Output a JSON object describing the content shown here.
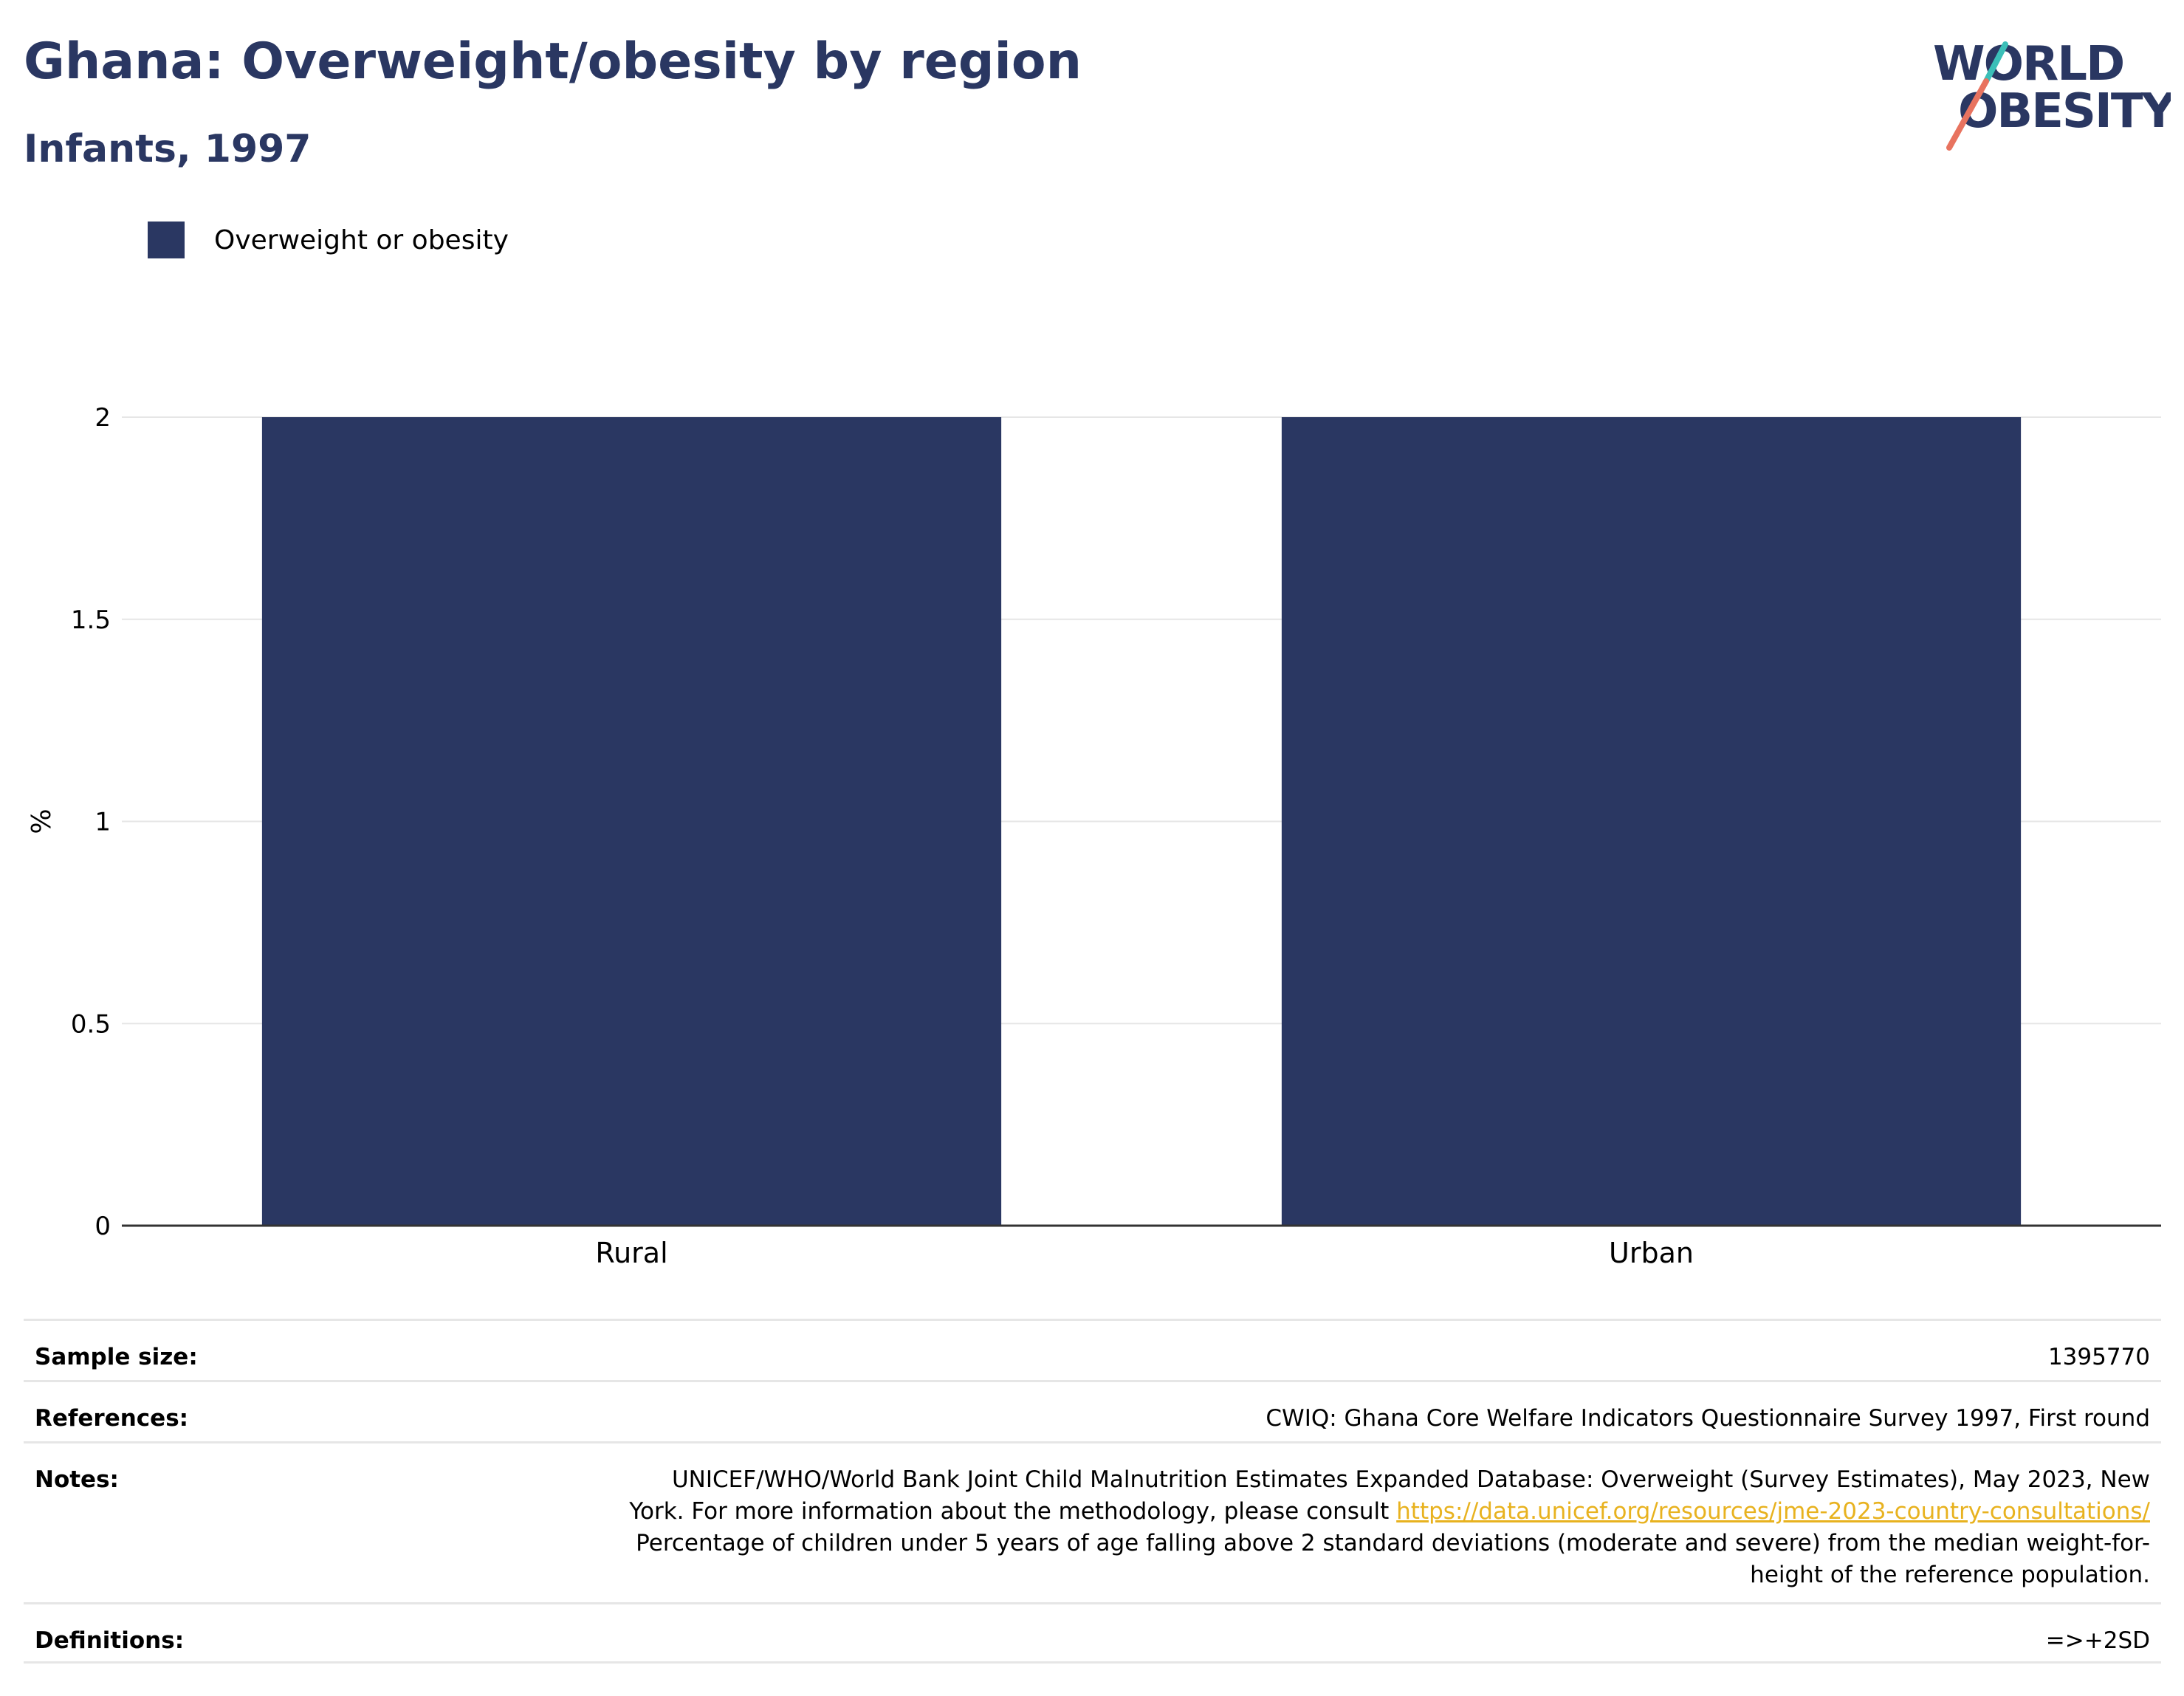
{
  "header": {
    "title": "Ghana: Overweight/obesity by region",
    "subtitle": "Infants, 1997"
  },
  "logo": {
    "line1": "WORLD",
    "line2": "OBESITY",
    "colors": {
      "text": "#2a3762",
      "slash_top": "#3bbfb8",
      "slash_bottom": "#e8735f"
    }
  },
  "legend": {
    "entries": [
      {
        "label": "Overweight or obesity",
        "color": "#2a3762"
      }
    ]
  },
  "chart_data": {
    "type": "bar",
    "categories": [
      "Rural",
      "Urban"
    ],
    "series": [
      {
        "name": "Overweight or obesity",
        "values": [
          2,
          2
        ],
        "color": "#2a3762"
      }
    ],
    "ylabel": "%",
    "xlabel": "",
    "ylim": [
      0,
      2
    ],
    "yticks": [
      0,
      0.5,
      1,
      1.5,
      2
    ],
    "ytick_labels": [
      "0",
      "0.5",
      "1",
      "1.5",
      "2"
    ],
    "grid": true,
    "legend_position": "top-left"
  },
  "footer": {
    "sample_size": {
      "label": "Sample size:",
      "value": "1395770"
    },
    "references": {
      "label": "References:",
      "value": "CWIQ: Ghana Core Welfare Indicators Questionnaire Survey 1997, First round"
    },
    "notes": {
      "label": "Notes:",
      "line1": "UNICEF/WHO/World Bank Joint Child Malnutrition Estimates Expanded Database: Overweight (Survey Estimates), May 2023, New",
      "line2_prefix": "York. For more information about the methodology, please consult ",
      "link": "https://data.unicef.org/resources/jme-2023-country-consultations/",
      "line3": "Percentage of children under 5 years of age falling above 2 standard deviations (moderate and severe) from the median weight-for-",
      "line4": "height of the reference population."
    },
    "definitions": {
      "label": "Definitions:",
      "value": "=>+2SD"
    }
  }
}
